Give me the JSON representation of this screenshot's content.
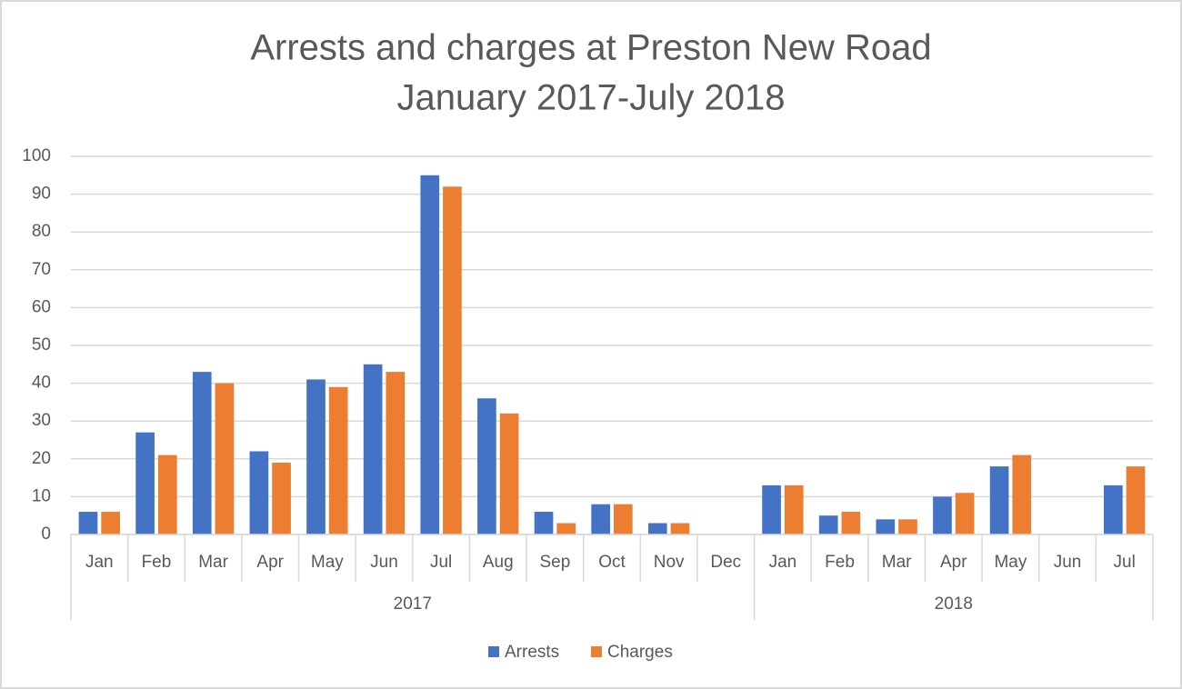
{
  "chart_data": {
    "type": "bar",
    "title": "Arrests and charges at Preston New Road",
    "subtitle": "January 2017-July 2018",
    "groups": [
      {
        "label": "2017",
        "categories": [
          "Jan",
          "Feb",
          "Mar",
          "Apr",
          "May",
          "Jun",
          "Jul",
          "Aug",
          "Sep",
          "Oct",
          "Nov",
          "Dec"
        ]
      },
      {
        "label": "2018",
        "categories": [
          "Jan",
          "Feb",
          "Mar",
          "Apr",
          "May",
          "Jun",
          "Jul"
        ]
      }
    ],
    "series": [
      {
        "name": "Arrests",
        "color": "#4472c4",
        "values": [
          6,
          27,
          43,
          22,
          41,
          45,
          95,
          36,
          6,
          8,
          3,
          null,
          13,
          5,
          4,
          10,
          18,
          null,
          13
        ]
      },
      {
        "name": "Charges",
        "color": "#ed7d31",
        "values": [
          6,
          21,
          40,
          19,
          39,
          43,
          92,
          32,
          3,
          8,
          3,
          null,
          13,
          6,
          4,
          11,
          21,
          null,
          18
        ]
      }
    ],
    "ylim": [
      0,
      100
    ],
    "yticks": [
      0,
      10,
      20,
      30,
      40,
      50,
      60,
      70,
      80,
      90,
      100
    ],
    "grid": true,
    "legend": "bottom"
  }
}
